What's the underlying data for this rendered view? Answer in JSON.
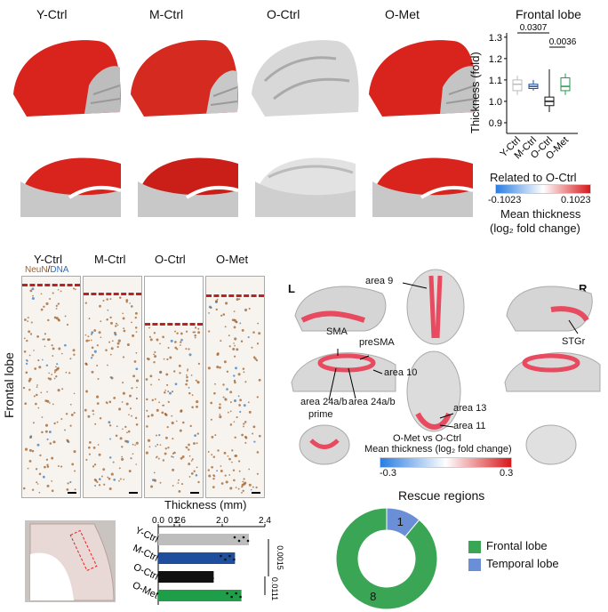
{
  "panel_a": {
    "group_labels": [
      "Y-Ctrl",
      "M-Ctrl",
      "O-Ctrl",
      "O-Met"
    ],
    "colorbar": {
      "title": "Related to O-Ctrl",
      "min_label": "-0.1023",
      "max_label": "0.1023",
      "caption_line1": "Mean thickness",
      "caption_line2": "(log₂ fold change)",
      "low_color": "#2a7de1",
      "mid_color": "#ffffff",
      "high_color": "#d7191c"
    }
  },
  "boxplot": {
    "title": "Frontal lobe",
    "ylabel": "Thickness (fold)",
    "yticks": [
      "0.9",
      "1.0",
      "1.1",
      "1.2",
      "1.3"
    ],
    "categories": [
      "Y-Ctrl",
      "M-Ctrl",
      "O-Ctrl",
      "O-Met"
    ],
    "pvals": [
      "0.0307",
      "0.0036"
    ]
  },
  "panel_b": {
    "stain_label_neun": "NeuN",
    "stain_label_sep": "/",
    "stain_label_dna": "DNA",
    "group_labels": [
      "Y-Ctrl",
      "M-Ctrl",
      "O-Ctrl",
      "O-Met"
    ],
    "region_label": "Frontal lobe",
    "xaxis_label": "Thickness (mm)"
  },
  "bar_chart": {
    "xticks": [
      "0.0",
      "0.2",
      "1.6",
      "2.0",
      "2.4"
    ],
    "categories": [
      "Y-Ctrl",
      "M-Ctrl",
      "O-Ctrl",
      "O-Met"
    ],
    "pvals": [
      "0.0015",
      "0.0111"
    ],
    "colors": [
      "#bdbdbd",
      "#1f4e9c",
      "#111111",
      "#1f9e4a"
    ]
  },
  "chart_data": [
    {
      "type": "box",
      "title": "Frontal lobe",
      "ylabel": "Thickness (fold)",
      "categories": [
        "Y-Ctrl",
        "M-Ctrl",
        "O-Ctrl",
        "O-Met"
      ],
      "ylim": [
        0.85,
        1.32
      ],
      "series": [
        {
          "name": "Y-Ctrl",
          "min": 1.03,
          "q1": 1.05,
          "median": 1.08,
          "q3": 1.1,
          "max": 1.12
        },
        {
          "name": "M-Ctrl",
          "min": 1.05,
          "q1": 1.06,
          "median": 1.07,
          "q3": 1.08,
          "max": 1.1
        },
        {
          "name": "O-Ctrl",
          "min": 0.95,
          "q1": 0.98,
          "median": 1.0,
          "q3": 1.02,
          "max": 1.15
        },
        {
          "name": "O-Met",
          "min": 1.03,
          "q1": 1.05,
          "median": 1.07,
          "q3": 1.11,
          "max": 1.13
        }
      ]
    },
    {
      "type": "bar",
      "xlabel": "Thickness (mm)",
      "categories": [
        "Y-Ctrl",
        "M-Ctrl",
        "O-Ctrl",
        "O-Met"
      ],
      "values": [
        2.25,
        2.12,
        1.92,
        2.18
      ],
      "xlim": [
        0,
        2.4
      ]
    },
    {
      "type": "pie",
      "title": "Rescue regions",
      "categories": [
        "Frontal lobe",
        "Temporal lobe"
      ],
      "values": [
        8,
        1
      ],
      "colors": [
        "#3aa655",
        "#6a8fd6"
      ]
    }
  ],
  "panel_c": {
    "side_left": "L",
    "side_right": "R",
    "area_labels": {
      "area9": "area 9",
      "stgr": "STGr",
      "sma": "SMA",
      "presma": "preSMA",
      "area10": "area 10",
      "area24prime_line1": "area 24a/b",
      "area24prime_line2": "prime",
      "area24": "area 24a/b",
      "area13": "area 13",
      "area11": "area 11"
    },
    "colorbar": {
      "title_line1": "O-Met vs O-Ctrl",
      "title_line2": "Mean thickness (log₂ fold change)",
      "min_label": "-0.3",
      "max_label": "0.3"
    }
  },
  "donut": {
    "title": "Rescue regions",
    "legend": [
      "Frontal lobe",
      "Temporal lobe"
    ],
    "labels": [
      "8",
      "1"
    ]
  }
}
